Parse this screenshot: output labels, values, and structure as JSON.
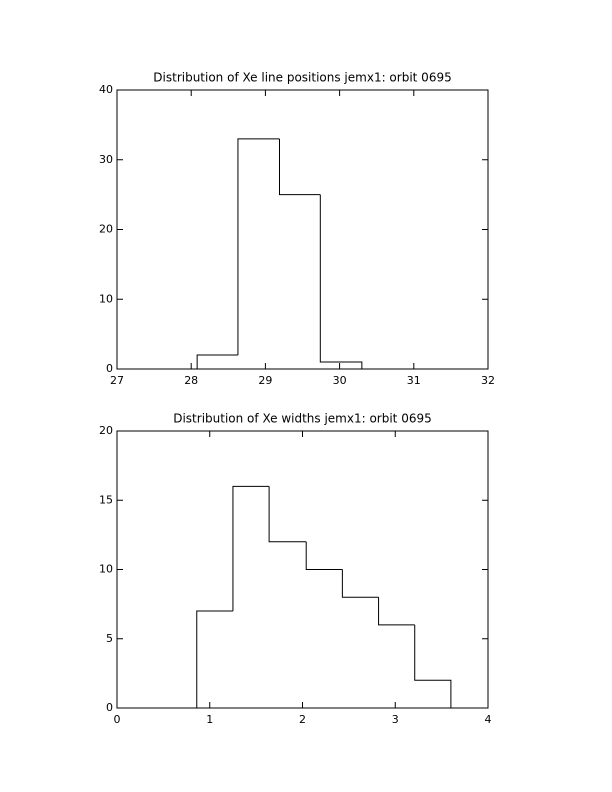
{
  "chart_data": [
    {
      "type": "histogram",
      "title": "Distribution of Xe line positions jemx1: orbit 0695",
      "bins": [
        28.08,
        28.63,
        29.19,
        29.74,
        30.3
      ],
      "values": [
        2,
        33,
        25,
        1
      ],
      "color": "#000000",
      "xlim": [
        27,
        32
      ],
      "xticks": [
        27,
        28,
        29,
        30,
        31,
        32
      ],
      "ylim": [
        0,
        40
      ],
      "yticks": [
        0,
        10,
        20,
        30,
        40
      ]
    },
    {
      "type": "histogram",
      "title": "Distribution of Xe widths jemx1: orbit 0695",
      "bins": [
        0.86,
        1.25,
        1.64,
        2.04,
        2.43,
        2.82,
        3.21,
        3.6
      ],
      "values": [
        7,
        16,
        12,
        10,
        8,
        6,
        2
      ],
      "color": "#000000",
      "xlim": [
        0,
        4
      ],
      "xticks": [
        0,
        1,
        2,
        3,
        4
      ],
      "ylim": [
        0,
        20
      ],
      "yticks": [
        0,
        5,
        10,
        15,
        20
      ]
    }
  ]
}
